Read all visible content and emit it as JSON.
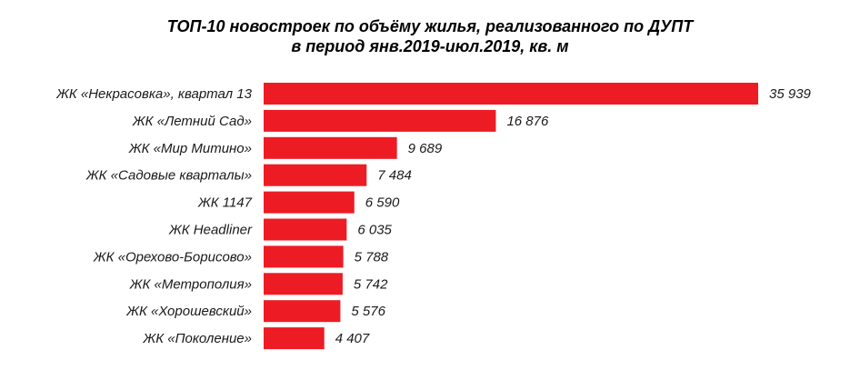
{
  "chart_data": {
    "type": "bar",
    "orientation": "horizontal",
    "title_line1": "ТОП-10 новостроек по объёму жилья, реализованного по ДУПТ",
    "title_line2": "в период янв.2019-июл.2019, кв. м",
    "categories": [
      "ЖК «Некрасовка», квартал 13",
      "ЖК «Летний Сад»",
      "ЖК «Мир Митино»",
      "ЖК «Садовые кварталы»",
      "ЖК 1147",
      "ЖК Headliner",
      "ЖК «Орехово-Борисово»",
      "ЖК «Метрополия»",
      "ЖК «Хорошевский»",
      "ЖК «Поколение»"
    ],
    "values": [
      35939,
      16876,
      9689,
      7484,
      6590,
      6035,
      5788,
      5742,
      5576,
      4407
    ],
    "value_labels": [
      "35 939",
      "16 876",
      "9 689",
      "7 484",
      "6 590",
      "6 035",
      "5 788",
      "5 742",
      "5 576",
      "4 407"
    ],
    "xlim": [
      0,
      35939
    ],
    "bar_color": "#ed1c24",
    "grid": false,
    "legend": "none",
    "xlabel": "",
    "ylabel": ""
  }
}
